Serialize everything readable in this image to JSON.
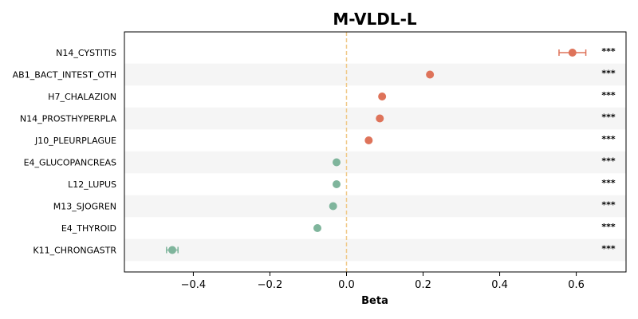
{
  "chart_data": {
    "type": "scatter",
    "title": "M-VLDL-L",
    "xlabel": "Beta",
    "ylabel": "",
    "xlim": [
      -0.58,
      0.73
    ],
    "xticks": [
      -0.4,
      -0.2,
      0.0,
      0.2,
      0.4,
      0.6
    ],
    "xtick_labels": [
      "−0.4",
      "−0.2",
      "0.0",
      "0.2",
      "0.4",
      "0.6"
    ],
    "reference_line": 0,
    "colors": {
      "positive": "#de735a",
      "negative": "#7fb59c",
      "reference": "#f0c988",
      "band": "#f5f5f5"
    },
    "points": [
      {
        "label": "N14_CYSTITIS",
        "beta": 0.59,
        "ci_low": 0.555,
        "ci_high": 0.625,
        "sig": "***"
      },
      {
        "label": "AB1_BACT_INTEST_OTH",
        "beta": 0.218,
        "ci_low": 0.218,
        "ci_high": 0.218,
        "sig": "***"
      },
      {
        "label": "H7_CHALAZION",
        "beta": 0.093,
        "ci_low": 0.093,
        "ci_high": 0.093,
        "sig": "***"
      },
      {
        "label": "N14_PROSTHYPERPLA",
        "beta": 0.087,
        "ci_low": 0.087,
        "ci_high": 0.087,
        "sig": "***"
      },
      {
        "label": "J10_PLEURPLAGUE",
        "beta": 0.058,
        "ci_low": 0.058,
        "ci_high": 0.058,
        "sig": "***"
      },
      {
        "label": "E4_GLUCOPANCREAS",
        "beta": -0.026,
        "ci_low": -0.026,
        "ci_high": -0.026,
        "sig": "***"
      },
      {
        "label": "L12_LUPUS",
        "beta": -0.026,
        "ci_low": -0.026,
        "ci_high": -0.026,
        "sig": "***"
      },
      {
        "label": "M13_SJOGREN",
        "beta": -0.035,
        "ci_low": -0.035,
        "ci_high": -0.035,
        "sig": "***"
      },
      {
        "label": "E4_THYROID",
        "beta": -0.076,
        "ci_low": -0.076,
        "ci_high": -0.076,
        "sig": "***"
      },
      {
        "label": "K11_CHRONGASTR",
        "beta": -0.455,
        "ci_low": -0.47,
        "ci_high": -0.44,
        "sig": "***"
      }
    ]
  }
}
